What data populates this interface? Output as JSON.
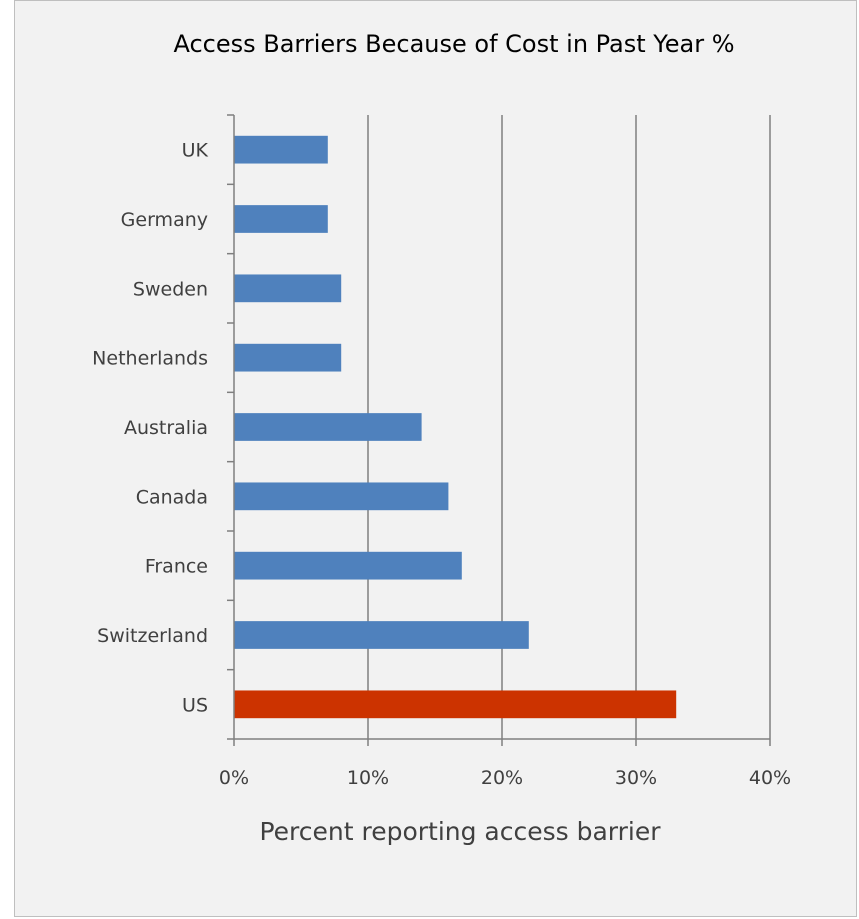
{
  "chart_data": {
    "type": "bar",
    "orientation": "horizontal",
    "title": "Access Barriers Because of Cost in Past Year %",
    "xlabel": "Percent reporting access barrier",
    "ylabel": "",
    "categories": [
      "UK",
      "Germany",
      "Sweden",
      "Netherlands",
      "Australia",
      "Canada",
      "France",
      "Switzerland",
      "US"
    ],
    "values": [
      7,
      7,
      8,
      8,
      14,
      16,
      17,
      22,
      33
    ],
    "xlim": [
      0,
      40
    ],
    "xticks": [
      0,
      10,
      20,
      30,
      40
    ],
    "xtick_labels": [
      "0%",
      "10%",
      "20%",
      "30%",
      "40%"
    ],
    "colors": [
      "#4f81bd",
      "#4f81bd",
      "#4f81bd",
      "#4f81bd",
      "#4f81bd",
      "#4f81bd",
      "#4f81bd",
      "#4f81bd",
      "#cc3300"
    ],
    "grid": "vertical major gridlines",
    "legend": "none"
  }
}
